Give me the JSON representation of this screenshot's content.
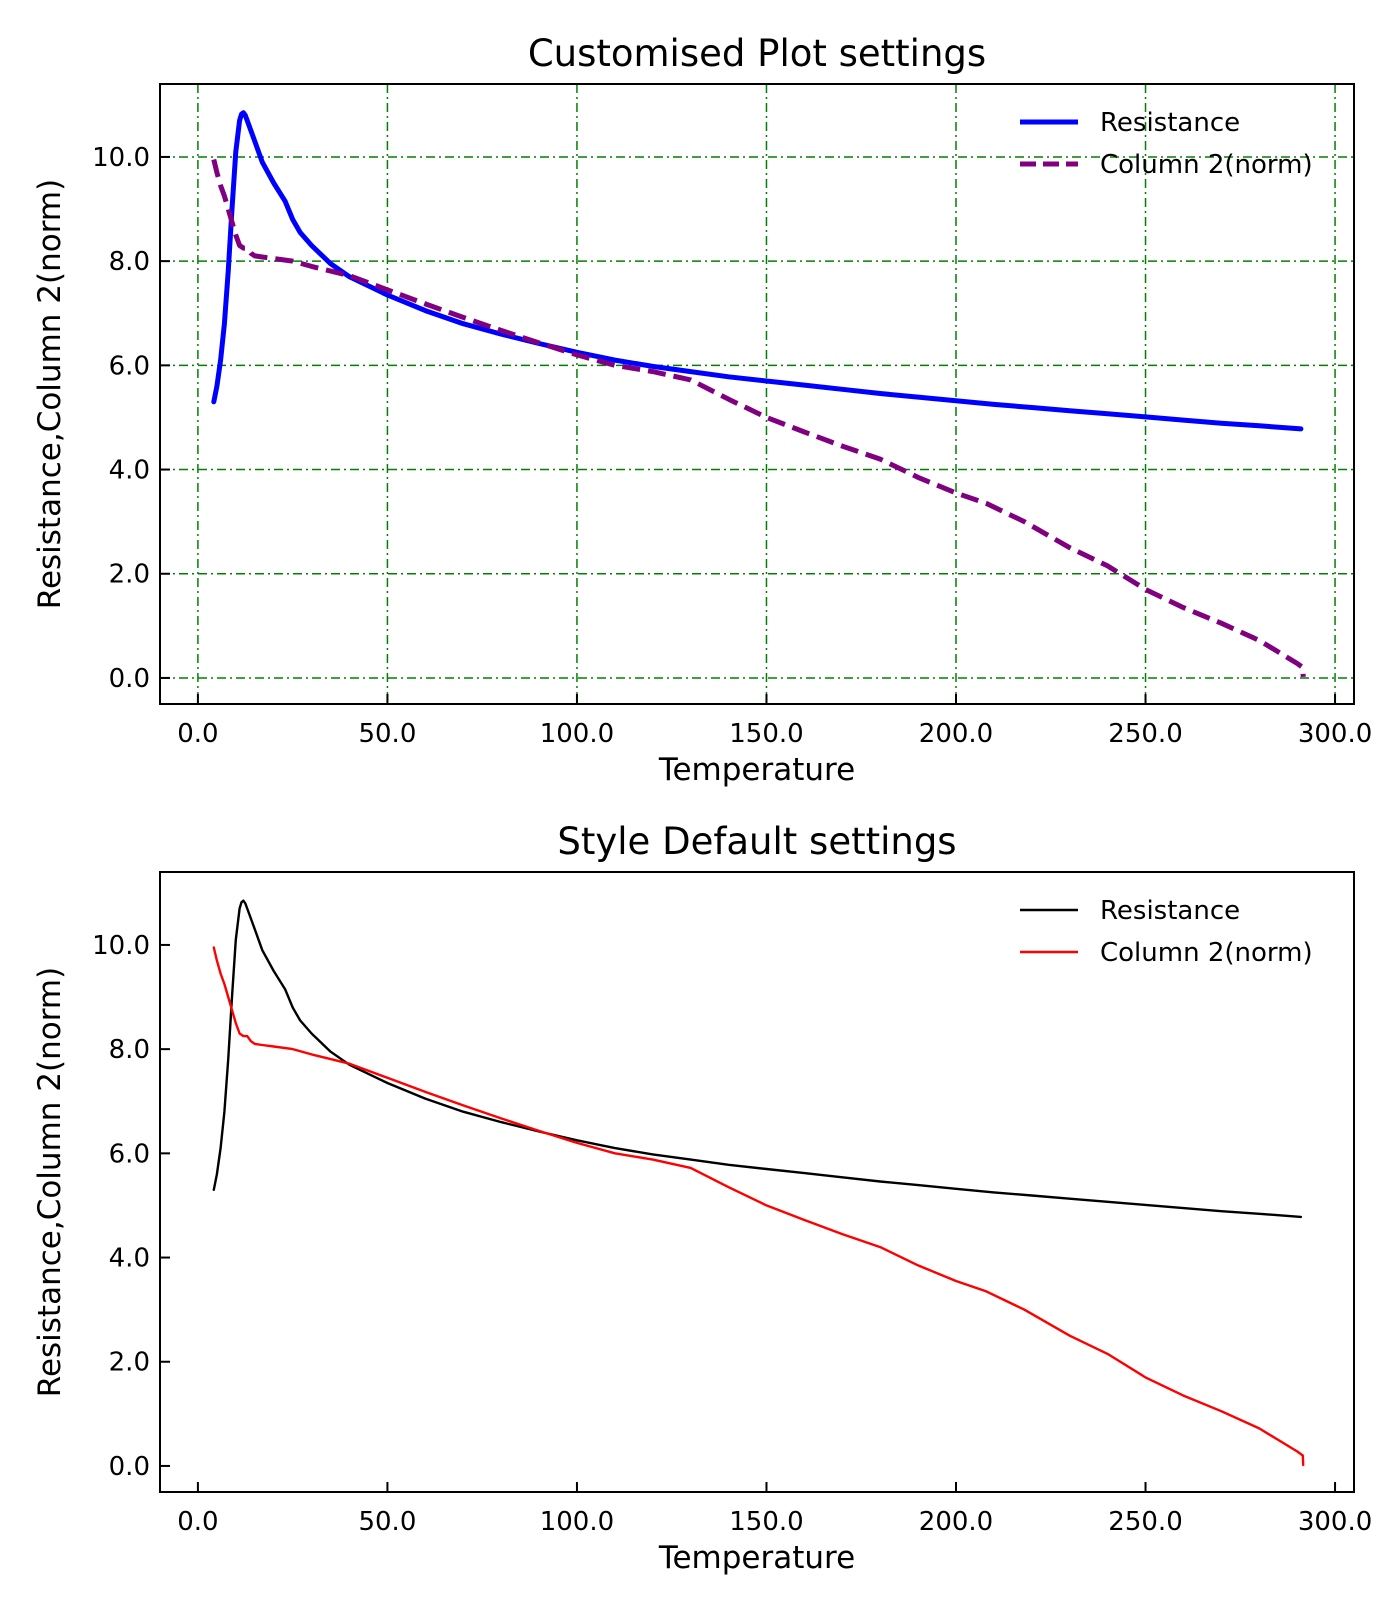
{
  "chart_data": [
    {
      "type": "line",
      "title": "Customised Plot settings",
      "xlabel": "Temperature",
      "ylabel": "Resistance,Column 2(norm)",
      "xlim": [
        -10,
        305
      ],
      "ylim": [
        -0.5,
        11.4
      ],
      "xticks": [
        0,
        50,
        100,
        150,
        200,
        250,
        300
      ],
      "xtick_labels": [
        "0.0",
        "50.0",
        "100.0",
        "150.0",
        "200.0",
        "250.0",
        "300.0"
      ],
      "yticks": [
        0,
        2,
        4,
        6,
        8,
        10
      ],
      "ytick_labels": [
        "0.0",
        "2.0",
        "4.0",
        "6.0",
        "8.0",
        "10.0"
      ],
      "grid": true,
      "grid_color": "#008000",
      "legend": "top-right",
      "series": [
        {
          "name": "Resistance",
          "color": "#0000ff",
          "style": "solid",
          "x": [
            4.2,
            5,
            6,
            7,
            8,
            9,
            10,
            11,
            11.5,
            12,
            12.5,
            13,
            13.5,
            14,
            15,
            17,
            20,
            23,
            25,
            27,
            30,
            35,
            40,
            50,
            60,
            70,
            80,
            90,
            100,
            110,
            120,
            130,
            140,
            150,
            160,
            170,
            180,
            190,
            200,
            210,
            220,
            230,
            240,
            250,
            260,
            270,
            280,
            291
          ],
          "y": [
            5.3,
            5.6,
            6.1,
            6.8,
            7.8,
            9.0,
            10.1,
            10.7,
            10.82,
            10.85,
            10.8,
            10.7,
            10.6,
            10.5,
            10.3,
            9.9,
            9.5,
            9.15,
            8.8,
            8.55,
            8.3,
            7.95,
            7.7,
            7.35,
            7.05,
            6.8,
            6.6,
            6.42,
            6.25,
            6.1,
            5.98,
            5.88,
            5.78,
            5.7,
            5.62,
            5.54,
            5.46,
            5.39,
            5.32,
            5.25,
            5.19,
            5.13,
            5.07,
            5.01,
            4.95,
            4.89,
            4.84,
            4.78
          ]
        },
        {
          "name": "Column 2(norm)",
          "color": "#800080",
          "style": "dashed",
          "x": [
            4.2,
            5,
            6,
            7,
            8,
            9,
            10,
            11,
            12,
            13,
            14,
            15,
            17,
            20,
            25,
            30,
            40,
            50,
            60,
            70,
            80,
            90,
            100,
            110,
            120,
            130,
            140,
            150,
            160,
            170,
            180,
            190,
            200,
            208,
            218,
            230,
            240,
            250,
            260,
            270,
            280,
            285,
            290,
            291.5,
            291.6
          ],
          "y": [
            9.95,
            9.7,
            9.45,
            9.25,
            9.0,
            8.75,
            8.5,
            8.3,
            8.25,
            8.25,
            8.15,
            8.1,
            8.08,
            8.05,
            8.0,
            7.9,
            7.72,
            7.45,
            7.18,
            6.92,
            6.67,
            6.43,
            6.2,
            6.0,
            5.88,
            5.72,
            5.35,
            5.0,
            4.72,
            4.45,
            4.2,
            3.85,
            3.55,
            3.35,
            3.0,
            2.5,
            2.15,
            1.7,
            1.35,
            1.05,
            0.72,
            0.5,
            0.28,
            0.2,
            0.02
          ]
        }
      ]
    },
    {
      "type": "line",
      "title": "Style Default settings",
      "xlabel": "Temperature",
      "ylabel": "Resistance,Column 2(norm)",
      "xlim": [
        -10,
        305
      ],
      "ylim": [
        -0.5,
        11.4
      ],
      "xticks": [
        0,
        50,
        100,
        150,
        200,
        250,
        300
      ],
      "xtick_labels": [
        "0.0",
        "50.0",
        "100.0",
        "150.0",
        "200.0",
        "250.0",
        "300.0"
      ],
      "yticks": [
        0,
        2,
        4,
        6,
        8,
        10
      ],
      "ytick_labels": [
        "0.0",
        "2.0",
        "4.0",
        "6.0",
        "8.0",
        "10.0"
      ],
      "grid": false,
      "legend": "top-right",
      "series": [
        {
          "name": "Resistance",
          "color": "#000000",
          "style": "solid",
          "x": [
            4.2,
            5,
            6,
            7,
            8,
            9,
            10,
            11,
            11.5,
            12,
            12.5,
            13,
            13.5,
            14,
            15,
            17,
            20,
            23,
            25,
            27,
            30,
            35,
            40,
            50,
            60,
            70,
            80,
            90,
            100,
            110,
            120,
            130,
            140,
            150,
            160,
            170,
            180,
            190,
            200,
            210,
            220,
            230,
            240,
            250,
            260,
            270,
            280,
            291
          ],
          "y": [
            5.3,
            5.6,
            6.1,
            6.8,
            7.8,
            9.0,
            10.1,
            10.7,
            10.82,
            10.85,
            10.8,
            10.7,
            10.6,
            10.5,
            10.3,
            9.9,
            9.5,
            9.15,
            8.8,
            8.55,
            8.3,
            7.95,
            7.7,
            7.35,
            7.05,
            6.8,
            6.6,
            6.42,
            6.25,
            6.1,
            5.98,
            5.88,
            5.78,
            5.7,
            5.62,
            5.54,
            5.46,
            5.39,
            5.32,
            5.25,
            5.19,
            5.13,
            5.07,
            5.01,
            4.95,
            4.89,
            4.84,
            4.78
          ]
        },
        {
          "name": "Column 2(norm)",
          "color": "#ff0000",
          "style": "solid",
          "x": [
            4.2,
            5,
            6,
            7,
            8,
            9,
            10,
            11,
            12,
            13,
            14,
            15,
            17,
            20,
            25,
            30,
            40,
            50,
            60,
            70,
            80,
            90,
            100,
            110,
            120,
            130,
            140,
            150,
            160,
            170,
            180,
            190,
            200,
            208,
            218,
            230,
            240,
            250,
            260,
            270,
            280,
            285,
            290,
            291.5,
            291.6
          ],
          "y": [
            9.95,
            9.7,
            9.45,
            9.25,
            9.0,
            8.75,
            8.5,
            8.3,
            8.25,
            8.25,
            8.15,
            8.1,
            8.08,
            8.05,
            8.0,
            7.9,
            7.72,
            7.45,
            7.18,
            6.92,
            6.67,
            6.43,
            6.2,
            6.0,
            5.88,
            5.72,
            5.35,
            5.0,
            4.72,
            4.45,
            4.2,
            3.85,
            3.55,
            3.35,
            3.0,
            2.5,
            2.15,
            1.7,
            1.35,
            1.05,
            0.72,
            0.5,
            0.28,
            0.2,
            0.02
          ]
        }
      ]
    }
  ]
}
